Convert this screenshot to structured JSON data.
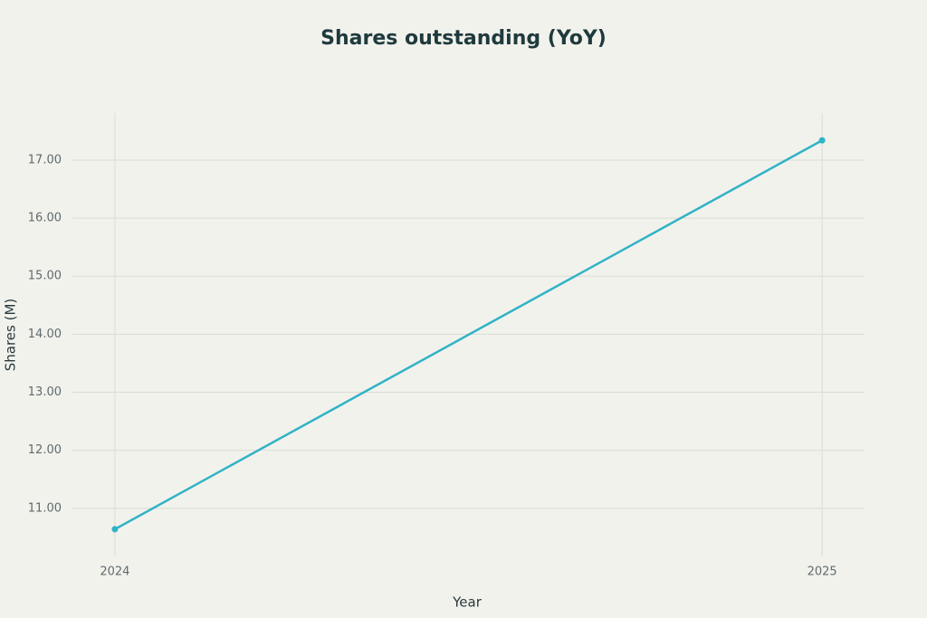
{
  "chart_data": {
    "type": "line",
    "title": "Shares outstanding (YoY)",
    "x_label": "Year",
    "y_label": "Shares (M)",
    "x": [
      2024,
      2025
    ],
    "xlim": [
      2023.94,
      2025.06
    ],
    "xticks": [
      2024,
      2025
    ],
    "series": [
      {
        "name": "Shares outstanding",
        "color": "#31b3c6",
        "values": [
          10.64,
          17.34
        ]
      }
    ],
    "ylim": [
      10.17,
      17.81
    ],
    "yticks": [
      {
        "value": 11,
        "label": "11.00"
      },
      {
        "value": 12,
        "label": "12.00"
      },
      {
        "value": 13,
        "label": "13.00"
      },
      {
        "value": 14,
        "label": "14.00"
      },
      {
        "value": 15,
        "label": "15.00"
      },
      {
        "value": 16,
        "label": "16.00"
      },
      {
        "value": 17,
        "label": "17.00"
      }
    ],
    "grid": true
  }
}
